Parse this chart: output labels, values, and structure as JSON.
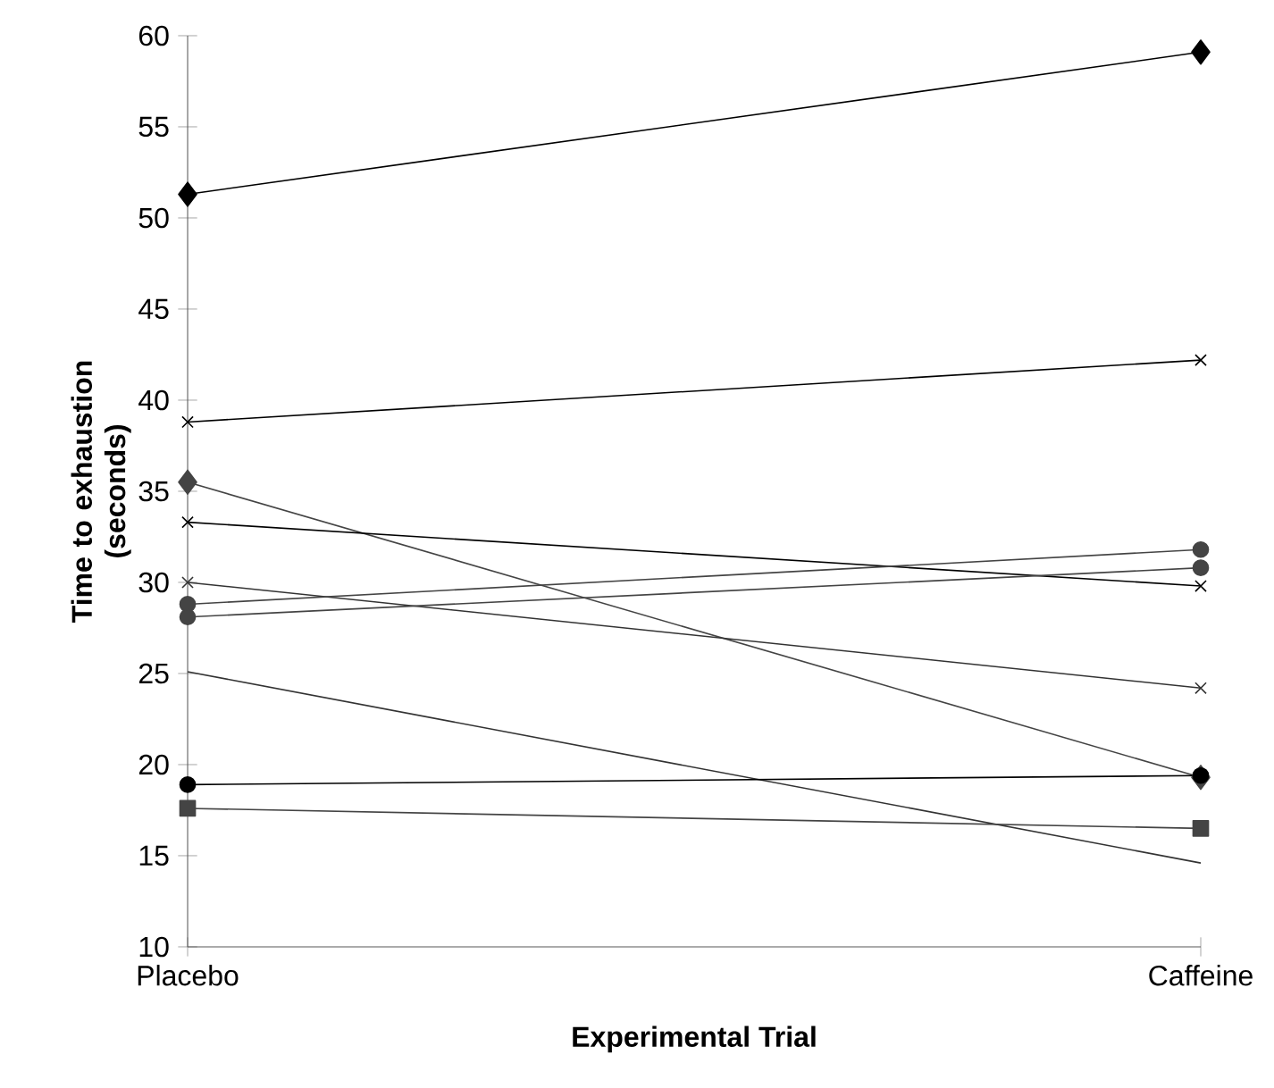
{
  "chart_data": {
    "type": "line",
    "xlabel": "Experimental Trial",
    "ylabel": "Time to exhaustion (seconds)",
    "categories": [
      "Placebo",
      "Caffeine"
    ],
    "ylim": [
      10,
      60
    ],
    "yticks": [
      10,
      15,
      20,
      25,
      30,
      35,
      40,
      45,
      50,
      55,
      60
    ],
    "grid": false,
    "series": [
      {
        "color": "#000000",
        "marker": "diamond",
        "values": [
          51.3,
          59.1
        ]
      },
      {
        "color": "#000000",
        "marker": "cross",
        "values": [
          38.8,
          42.2
        ]
      },
      {
        "color": "#444444",
        "marker": "diamond",
        "values": [
          35.5,
          19.3
        ]
      },
      {
        "color": "#000000",
        "marker": "cross",
        "values": [
          33.3,
          29.8
        ]
      },
      {
        "color": "#333333",
        "marker": "cross",
        "values": [
          30.0,
          24.2
        ]
      },
      {
        "color": "#444444",
        "marker": "circle",
        "values": [
          28.8,
          31.8
        ]
      },
      {
        "color": "#444444",
        "marker": "circle",
        "values": [
          28.1,
          30.8
        ]
      },
      {
        "color": "#333333",
        "marker": "none",
        "values": [
          25.1,
          14.6
        ]
      },
      {
        "color": "#000000",
        "marker": "circle",
        "values": [
          18.9,
          19.4
        ]
      },
      {
        "color": "#444444",
        "marker": "square",
        "values": [
          17.6,
          16.5
        ]
      }
    ]
  }
}
